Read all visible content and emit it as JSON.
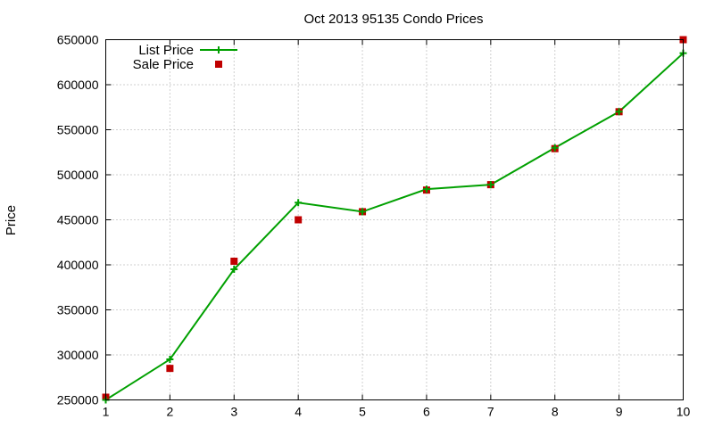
{
  "chart_data": {
    "type": "line",
    "title": "Oct 2013 95135 Condo Prices",
    "xlabel": "",
    "ylabel": "Price",
    "x": [
      1,
      2,
      3,
      4,
      5,
      6,
      7,
      8,
      9,
      10
    ],
    "xlim": [
      1,
      10
    ],
    "ylim": [
      250000,
      650000
    ],
    "x_ticks": [
      1,
      2,
      3,
      4,
      5,
      6,
      7,
      8,
      9,
      10
    ],
    "y_ticks": [
      250000,
      300000,
      350000,
      400000,
      450000,
      500000,
      550000,
      600000,
      650000
    ],
    "grid": true,
    "legend_position": "top-left",
    "series": [
      {
        "name": "List Price",
        "style": "line-with-plus-markers",
        "color": "#00a000",
        "values": [
          250000,
          295000,
          395000,
          469000,
          459000,
          484000,
          489000,
          530000,
          570000,
          635000
        ]
      },
      {
        "name": "Sale Price",
        "style": "square-markers",
        "color": "#c00000",
        "values": [
          253000,
          285000,
          404000,
          450000,
          459000,
          483000,
          489000,
          529000,
          570000,
          650000
        ]
      }
    ]
  }
}
